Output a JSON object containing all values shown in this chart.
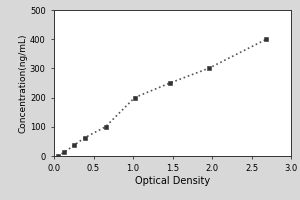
{
  "x_data": [
    0.047,
    0.127,
    0.258,
    0.388,
    0.652,
    1.021,
    1.467,
    1.956,
    2.689
  ],
  "y_data": [
    0,
    12.5,
    37.5,
    62.5,
    100,
    200,
    250,
    300,
    400
  ],
  "xlabel": "Optical Density",
  "ylabel": "Concentration(ng/mL)",
  "xlim": [
    0,
    3
  ],
  "ylim": [
    0,
    500
  ],
  "xticks": [
    0,
    0.5,
    1,
    1.5,
    2,
    2.5,
    3
  ],
  "yticks": [
    0,
    100,
    200,
    300,
    400,
    500
  ],
  "line_color": "#555555",
  "marker_color": "#333333",
  "background_color": "#ffffff",
  "outer_background": "#d8d8d8",
  "line_style": "dotted",
  "marker_style": "s",
  "marker_size": 2.5,
  "line_width": 1.2,
  "xlabel_fontsize": 7,
  "ylabel_fontsize": 6.5,
  "tick_fontsize": 6
}
